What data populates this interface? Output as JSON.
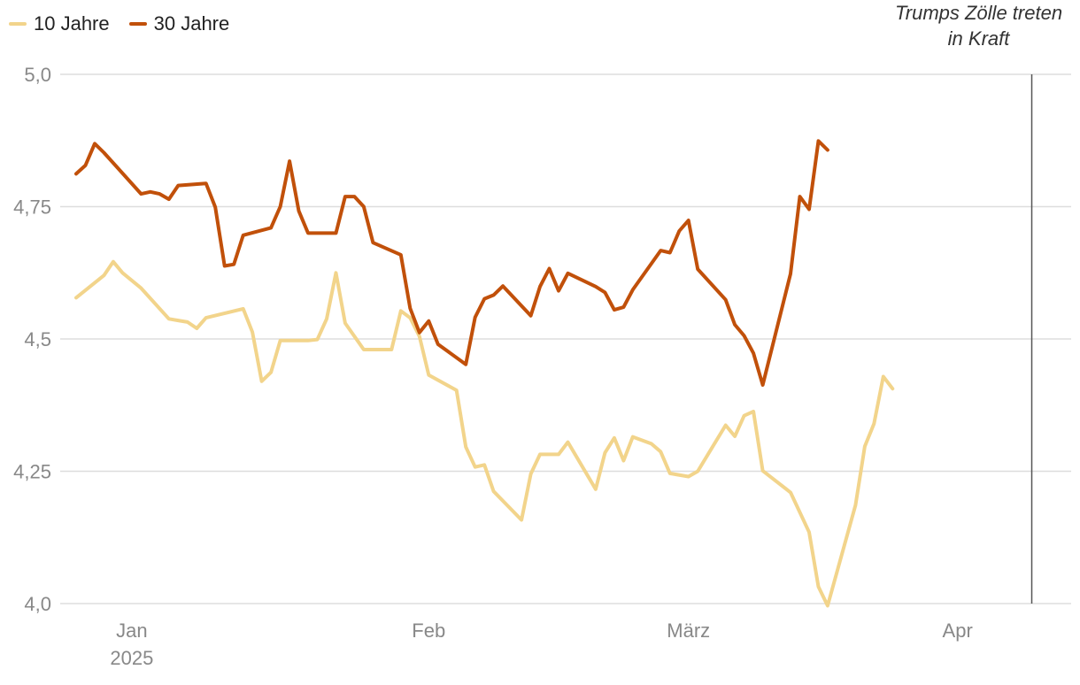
{
  "chart_data": {
    "type": "line",
    "title": "",
    "xlabel": "",
    "ylabel": "",
    "ylim": [
      4.0,
      5.0
    ],
    "grid": true,
    "legend_position": "top-left",
    "y_ticks": [
      "4,0",
      "4,25",
      "4,5",
      "4,75",
      "5,0"
    ],
    "y_tick_values": [
      4.0,
      4.25,
      4.5,
      4.75,
      5.0
    ],
    "x_tick_labels": [
      "Jan",
      "Feb",
      "März",
      "Apr"
    ],
    "x_tick_dates": [
      "2025-01-02",
      "2025-02-03",
      "2025-03-03",
      "2025-04-01"
    ],
    "x_sublabel": "2025",
    "x_range": [
      "2024-12-27",
      "2025-04-10"
    ],
    "annotation": {
      "date": "2025-04-09",
      "lines": [
        "Trumps Zölle treten",
        "in Kraft"
      ]
    },
    "series": [
      {
        "name": "10 Jahre",
        "color": "#f2d48b",
        "points": [
          [
            "2024-12-27",
            4.578
          ],
          [
            "2024-12-30",
            4.62
          ],
          [
            "2024-12-31",
            4.646
          ],
          [
            "2025-01-01",
            4.625
          ],
          [
            "2025-01-03",
            4.596
          ],
          [
            "2025-01-06",
            4.538
          ],
          [
            "2025-01-07",
            4.535
          ],
          [
            "2025-01-08",
            4.532
          ],
          [
            "2025-01-09",
            4.52
          ],
          [
            "2025-01-10",
            4.54
          ],
          [
            "2025-01-14",
            4.557
          ],
          [
            "2025-01-15",
            4.513
          ],
          [
            "2025-01-16",
            4.42
          ],
          [
            "2025-01-17",
            4.437
          ],
          [
            "2025-01-18",
            4.497
          ],
          [
            "2025-01-21",
            4.497
          ],
          [
            "2025-01-22",
            4.499
          ],
          [
            "2025-01-23",
            4.538
          ],
          [
            "2025-01-24",
            4.625
          ],
          [
            "2025-01-25",
            4.53
          ],
          [
            "2025-01-27",
            4.48
          ],
          [
            "2025-01-30",
            4.48
          ],
          [
            "2025-01-31",
            4.553
          ],
          [
            "2025-02-01",
            4.54
          ],
          [
            "2025-02-02",
            4.505
          ],
          [
            "2025-02-03",
            4.432
          ],
          [
            "2025-02-06",
            4.403
          ],
          [
            "2025-02-07",
            4.296
          ],
          [
            "2025-02-08",
            4.258
          ],
          [
            "2025-02-09",
            4.262
          ],
          [
            "2025-02-10",
            4.212
          ],
          [
            "2025-02-13",
            4.158
          ],
          [
            "2025-02-14",
            4.245
          ],
          [
            "2025-02-15",
            4.282
          ],
          [
            "2025-02-17",
            4.282
          ],
          [
            "2025-02-18",
            4.305
          ],
          [
            "2025-02-21",
            4.216
          ],
          [
            "2025-02-22",
            4.285
          ],
          [
            "2025-02-23",
            4.313
          ],
          [
            "2025-02-24",
            4.27
          ],
          [
            "2025-02-25",
            4.315
          ],
          [
            "2025-02-27",
            4.302
          ],
          [
            "2025-02-28",
            4.287
          ],
          [
            "2025-03-01",
            4.246
          ],
          [
            "2025-03-03",
            4.24
          ],
          [
            "2025-03-04",
            4.25
          ],
          [
            "2025-03-07",
            4.337
          ],
          [
            "2025-03-08",
            4.316
          ],
          [
            "2025-03-09",
            4.355
          ],
          [
            "2025-03-10",
            4.363
          ],
          [
            "2025-03-11",
            4.251
          ],
          [
            "2025-03-14",
            4.21
          ],
          [
            "2025-03-16",
            4.135
          ],
          [
            "2025-03-17",
            4.032
          ],
          [
            "2025-03-18",
            3.996
          ],
          [
            "2025-03-21",
            4.186
          ],
          [
            "2025-03-22",
            4.297
          ],
          [
            "2025-03-23",
            4.34
          ],
          [
            "2025-03-24",
            4.429
          ],
          [
            "2025-03-25",
            4.406
          ]
        ]
      },
      {
        "name": "30 Jahre",
        "color": "#c1500a",
        "points": [
          [
            "2024-12-27",
            4.812
          ],
          [
            "2024-12-28",
            4.828
          ],
          [
            "2024-12-29",
            4.869
          ],
          [
            "2024-12-30",
            4.852
          ],
          [
            "2025-01-03",
            4.774
          ],
          [
            "2025-01-04",
            4.778
          ],
          [
            "2025-01-05",
            4.774
          ],
          [
            "2025-01-06",
            4.764
          ],
          [
            "2025-01-07",
            4.79
          ],
          [
            "2025-01-10",
            4.794
          ],
          [
            "2025-01-11",
            4.749
          ],
          [
            "2025-01-12",
            4.638
          ],
          [
            "2025-01-13",
            4.641
          ],
          [
            "2025-01-14",
            4.696
          ],
          [
            "2025-01-17",
            4.71
          ],
          [
            "2025-01-18",
            4.75
          ],
          [
            "2025-01-19",
            4.836
          ],
          [
            "2025-01-20",
            4.742
          ],
          [
            "2025-01-21",
            4.7
          ],
          [
            "2025-01-24",
            4.7
          ],
          [
            "2025-01-25",
            4.769
          ],
          [
            "2025-01-26",
            4.769
          ],
          [
            "2025-01-27",
            4.75
          ],
          [
            "2025-01-28",
            4.682
          ],
          [
            "2025-01-31",
            4.659
          ],
          [
            "2025-02-01",
            4.558
          ],
          [
            "2025-02-02",
            4.512
          ],
          [
            "2025-02-03",
            4.534
          ],
          [
            "2025-02-04",
            4.49
          ],
          [
            "2025-02-07",
            4.452
          ],
          [
            "2025-02-08",
            4.541
          ],
          [
            "2025-02-09",
            4.576
          ],
          [
            "2025-02-10",
            4.583
          ],
          [
            "2025-02-11",
            4.6
          ],
          [
            "2025-02-14",
            4.544
          ],
          [
            "2025-02-15",
            4.599
          ],
          [
            "2025-02-16",
            4.633
          ],
          [
            "2025-02-17",
            4.591
          ],
          [
            "2025-02-18",
            4.624
          ],
          [
            "2025-02-21",
            4.599
          ],
          [
            "2025-02-22",
            4.588
          ],
          [
            "2025-02-23",
            4.555
          ],
          [
            "2025-02-24",
            4.56
          ],
          [
            "2025-02-25",
            4.593
          ],
          [
            "2025-02-28",
            4.667
          ],
          [
            "2025-03-01",
            4.663
          ],
          [
            "2025-03-02",
            4.704
          ],
          [
            "2025-03-03",
            4.724
          ],
          [
            "2025-03-04",
            4.632
          ],
          [
            "2025-03-07",
            4.574
          ],
          [
            "2025-03-08",
            4.527
          ],
          [
            "2025-03-09",
            4.506
          ],
          [
            "2025-03-10",
            4.473
          ],
          [
            "2025-03-11",
            4.413
          ],
          [
            "2025-03-14",
            4.623
          ],
          [
            "2025-03-15",
            4.769
          ],
          [
            "2025-03-16",
            4.745
          ],
          [
            "2025-03-17",
            4.874
          ],
          [
            "2025-03-18",
            4.857
          ]
        ]
      }
    ]
  }
}
